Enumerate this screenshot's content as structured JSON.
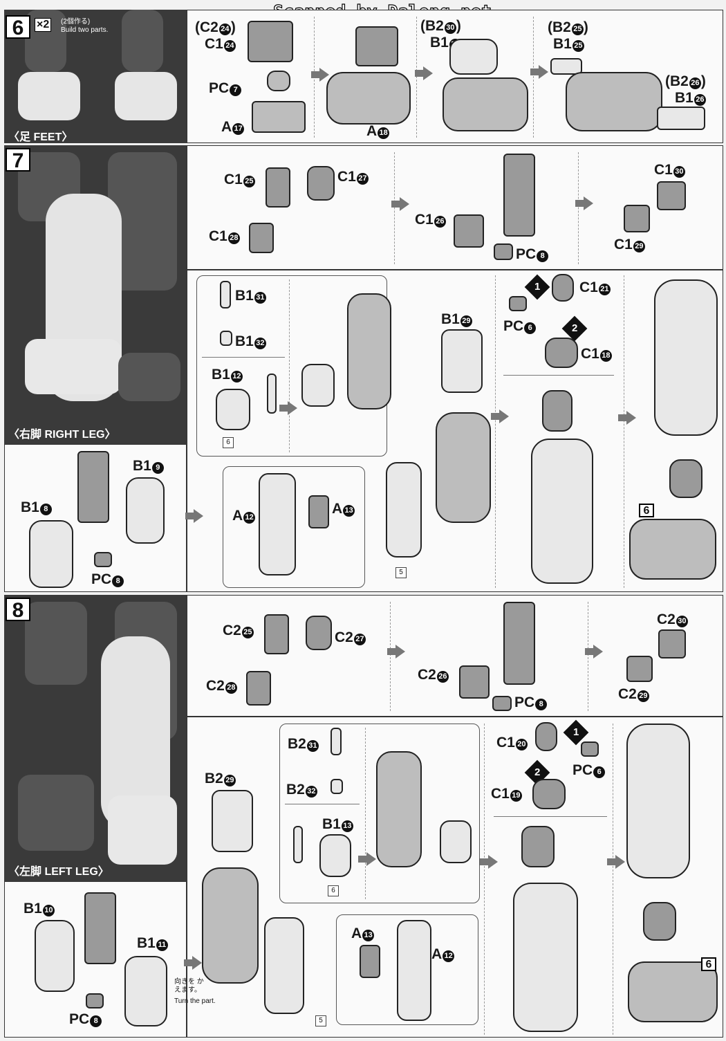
{
  "watermark": "Scanned by Dalong.net",
  "step6": {
    "number": "6",
    "multiplier": "×2",
    "note_jp": "(2個作る)",
    "note_en": "Build two parts.",
    "section_label": "〈足 FEET〉",
    "labels": {
      "c2_24": "(C2",
      "c2_24n": "24",
      "c1_24": "C1",
      "c1_24n": "24",
      "pc7": "PC",
      "pc7n": "7",
      "a17": "A",
      "a17n": "17",
      "a18": "A",
      "a18n": "18",
      "b2_30": "(B2",
      "b2_30n": "30",
      "b1_30": "B1",
      "b1_30n": "30",
      "b2_25": "(B2",
      "b2_25n": "25",
      "b1_25": "B1",
      "b1_25n": "25",
      "b2_26": "(B2",
      "b2_26n": "26",
      "b1_26": "B1",
      "b1_26n": "26"
    }
  },
  "step7": {
    "number": "7",
    "section_label": "〈右脚 RIGHT LEG〉",
    "labels": {
      "c1_25": "C1",
      "c1_25n": "25",
      "c1_27": "C1",
      "c1_27n": "27",
      "c1_28": "C1",
      "c1_28n": "28",
      "c1_26": "C1",
      "c1_26n": "26",
      "pc8a": "PC",
      "pc8an": "8",
      "c1_30": "C1",
      "c1_30n": "30",
      "c1_29": "C1",
      "c1_29n": "29",
      "b1_31": "B1",
      "b1_31n": "31",
      "b1_32": "B1",
      "b1_32n": "32",
      "b1_12": "B1",
      "b1_12n": "12",
      "b1_29": "B1",
      "b1_29n": "29",
      "c1_21": "C1",
      "c1_21n": "21",
      "pc6": "PC",
      "pc6n": "6",
      "c1_18": "C1",
      "c1_18n": "18",
      "b1_8": "B1",
      "b1_8n": "8",
      "b1_9": "B1",
      "b1_9n": "9",
      "pc8b": "PC",
      "pc8bn": "8",
      "a12": "A",
      "a12n": "12",
      "a13": "A",
      "a13n": "13"
    },
    "refs": {
      "r6a": "6",
      "r5": "5",
      "ref6": "6"
    },
    "badges": {
      "one": "1",
      "two": "2"
    }
  },
  "step8": {
    "number": "8",
    "section_label": "〈左脚 LEFT LEG〉",
    "labels": {
      "c2_25": "C2",
      "c2_25n": "25",
      "c2_27": "C2",
      "c2_27n": "27",
      "c2_28": "C2",
      "c2_28n": "28",
      "c2_26": "C2",
      "c2_26n": "26",
      "pc8a": "PC",
      "pc8an": "8",
      "c2_30": "C2",
      "c2_30n": "30",
      "c2_29": "C2",
      "c2_29n": "29",
      "b2_29": "B2",
      "b2_29n": "29",
      "b2_31": "B2",
      "b2_31n": "31",
      "b2_32": "B2",
      "b2_32n": "32",
      "b1_13": "B1",
      "b1_13n": "13",
      "c1_20": "C1",
      "c1_20n": "20",
      "pc6": "PC",
      "pc6n": "6",
      "c1_19": "C1",
      "c1_19n": "19",
      "b1_10": "B1",
      "b1_10n": "10",
      "b1_11": "B1",
      "b1_11n": "11",
      "pc8b": "PC",
      "pc8bn": "8",
      "a13": "A",
      "a13n": "13",
      "a12": "A",
      "a12n": "12",
      "turn_jp": "向きを かえます。",
      "turn_en": "Turn the part."
    },
    "refs": {
      "r6": "6",
      "r5": "5",
      "ref6": "6"
    },
    "badges": {
      "one": "1",
      "two": "2"
    }
  }
}
